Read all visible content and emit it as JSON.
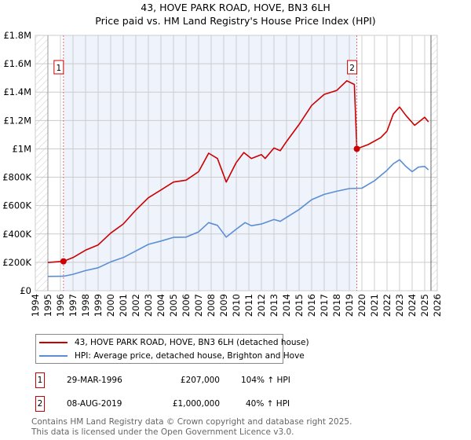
{
  "title": "43, HOVE PARK ROAD, HOVE, BN3 6LH",
  "subtitle": "Price paid vs. HM Land Registry's House Price Index (HPI)",
  "colors": {
    "property": "#cc0000",
    "hpi": "#5b8fd4",
    "shade": "#eef3fc"
  },
  "chart_data": {
    "type": "line",
    "title": "43, HOVE PARK ROAD, HOVE, BN3 6LH — Price paid vs. HM Land Registry's House Price Index (HPI)",
    "xlim": [
      1994,
      2026
    ],
    "ylim": [
      0,
      1800000
    ],
    "x_ticks": [
      "1994",
      "1995",
      "1996",
      "1997",
      "1998",
      "1999",
      "2000",
      "2001",
      "2002",
      "2003",
      "2004",
      "2005",
      "2006",
      "2007",
      "2008",
      "2009",
      "2010",
      "2011",
      "2012",
      "2013",
      "2014",
      "2015",
      "2016",
      "2017",
      "2018",
      "2019",
      "2020",
      "2021",
      "2022",
      "2023",
      "2024",
      "2025",
      "2026"
    ],
    "y_ticks": [
      {
        "v": 0,
        "label": "£0"
      },
      {
        "v": 200000,
        "label": "£200K"
      },
      {
        "v": 400000,
        "label": "£400K"
      },
      {
        "v": 600000,
        "label": "£600K"
      },
      {
        "v": 800000,
        "label": "£800K"
      },
      {
        "v": 1000000,
        "label": "£1M"
      },
      {
        "v": 1200000,
        "label": "£1.2M"
      },
      {
        "v": 1400000,
        "label": "£1.4M"
      },
      {
        "v": 1600000,
        "label": "£1.6M"
      },
      {
        "v": 1800000,
        "label": "£1.8M"
      }
    ],
    "grid": true,
    "series": [
      {
        "name": "43, HOVE PARK ROAD, HOVE, BN3 6LH (detached house)",
        "x": [
          1995,
          1996.24,
          1997,
          1998,
          1999,
          2000,
          2001,
          2002,
          2003,
          2004,
          2005,
          2006,
          2007,
          2007.8,
          2008.5,
          2009.2,
          2010,
          2010.6,
          2011.2,
          2012,
          2012.3,
          2013,
          2013.5,
          2014,
          2015,
          2016,
          2017,
          2018,
          2018.8,
          2019.4,
          2019.6,
          2020.5,
          2021.5,
          2022,
          2022.5,
          2023,
          2023.5,
          2024.2,
          2025,
          2025.3
        ],
        "y": [
          199000,
          207000,
          234000,
          286000,
          323000,
          406000,
          470000,
          568000,
          655000,
          710000,
          766000,
          779000,
          839000,
          969000,
          932000,
          766000,
          904000,
          974000,
          932000,
          959000,
          932000,
          1006000,
          987000,
          1052000,
          1172000,
          1306000,
          1384000,
          1412000,
          1480000,
          1454000,
          1000000,
          1030000,
          1079000,
          1125000,
          1245000,
          1295000,
          1236000,
          1166000,
          1223000,
          1190000
        ]
      },
      {
        "name": "HPI: Average price, detached house, Brighton and Hove",
        "x": [
          1995,
          1996.24,
          1997,
          1998,
          1999,
          2000,
          2001,
          2002,
          2003,
          2004,
          2005,
          2006,
          2007,
          2007.8,
          2008.5,
          2009.2,
          2010,
          2010.7,
          2011.2,
          2012,
          2013,
          2013.5,
          2014,
          2015,
          2016,
          2017,
          2018,
          2019,
          2020,
          2021,
          2022,
          2022.5,
          2023,
          2023.5,
          2024,
          2024.5,
          2025,
          2025.3
        ],
        "y": [
          101000,
          102000,
          116000,
          142000,
          162000,
          203000,
          234000,
          280000,
          327000,
          350000,
          376000,
          378000,
          415000,
          480000,
          461000,
          378000,
          434000,
          480000,
          458000,
          470000,
          502000,
          489000,
          517000,
          572000,
          642000,
          679000,
          701000,
          720000,
          723000,
          775000,
          849000,
          895000,
          923000,
          876000,
          839000,
          871000,
          876000,
          852000
        ]
      }
    ],
    "sales": [
      {
        "id": "1",
        "x": 1996.24,
        "y": 207000,
        "date": "29-MAR-1996",
        "price": "£207,000",
        "hpi": "104% ↑ HPI"
      },
      {
        "id": "2",
        "x": 2019.6,
        "y": 1000000,
        "date": "08-AUG-2019",
        "price": "£1,000,000",
        "hpi": "40% ↑ HPI"
      }
    ],
    "legend_placement": "below"
  },
  "footer": [
    "Contains HM Land Registry data © Crown copyright and database right 2025.",
    "This data is licensed under the Open Government Licence v3.0."
  ]
}
